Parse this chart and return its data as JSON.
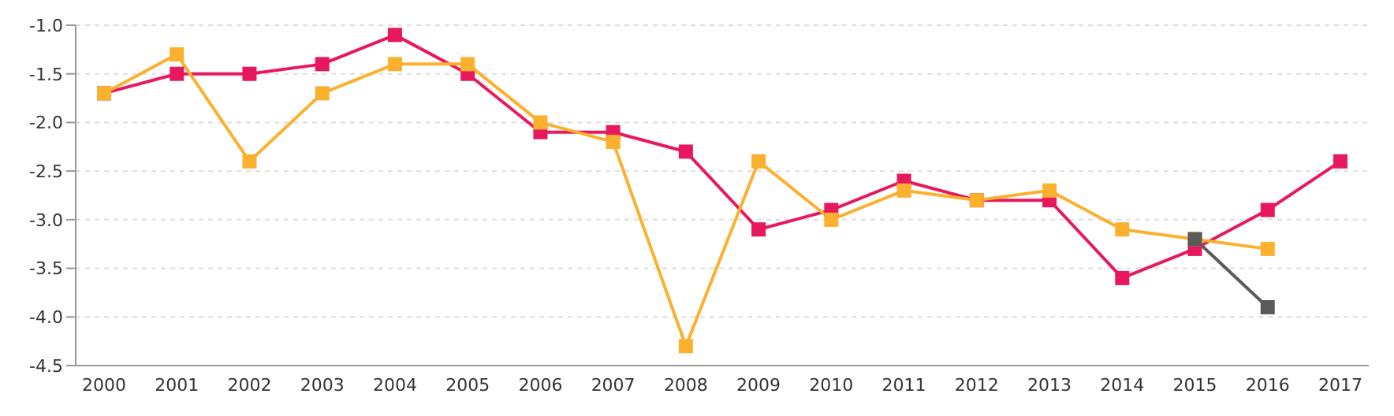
{
  "chart_data": {
    "type": "line",
    "categories": [
      "2000",
      "2001",
      "2002",
      "2003",
      "2004",
      "2005",
      "2006",
      "2007",
      "2008",
      "2009",
      "2010",
      "2011",
      "2012",
      "2013",
      "2014",
      "2015",
      "2016",
      "2017"
    ],
    "series": [
      {
        "color": "#e8185e",
        "values": [
          -1.7,
          -1.5,
          -1.5,
          -1.4,
          -1.1,
          -1.5,
          -2.1,
          -2.1,
          -2.3,
          -3.1,
          -2.9,
          -2.6,
          -2.8,
          -2.8,
          -3.6,
          -3.3,
          -2.9,
          -2.4
        ]
      },
      {
        "color": "#fbb02e",
        "values": [
          -1.7,
          -1.3,
          -2.4,
          -1.7,
          -1.4,
          -1.4,
          -2.0,
          -2.2,
          -4.3,
          -2.4,
          -3.0,
          -2.7,
          -2.8,
          -2.7,
          -3.1,
          -3.2,
          -3.3,
          null
        ]
      },
      {
        "color": "#5a5a5a",
        "values": [
          null,
          null,
          null,
          null,
          null,
          null,
          null,
          null,
          null,
          null,
          null,
          null,
          null,
          null,
          null,
          -3.2,
          -3.9,
          null
        ]
      }
    ],
    "ylim": [
      -4.5,
      -1.0
    ],
    "yticks": [
      {
        "value": -1,
        "label": "-1.0"
      },
      {
        "value": -1.5,
        "label": "-1.5"
      },
      {
        "value": -2,
        "label": "-2.0"
      },
      {
        "value": -2.5,
        "label": "-2.5"
      },
      {
        "value": -3,
        "label": "-3.0"
      },
      {
        "value": -3.5,
        "label": "-3.5"
      },
      {
        "value": -4,
        "label": "-4.0"
      },
      {
        "value": -4.5,
        "label": "-4.5"
      }
    ],
    "grid": "y",
    "legend": false,
    "marker": "square",
    "line_style": "solid"
  }
}
